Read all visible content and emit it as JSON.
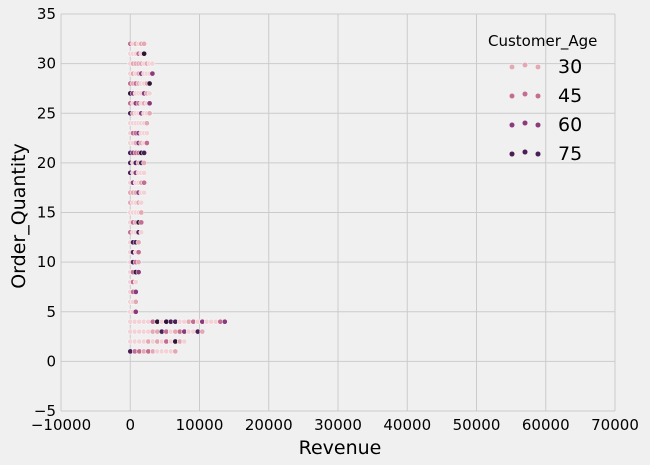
{
  "chart_data": {
    "type": "scatter",
    "title": "",
    "xlabel": "Revenue",
    "ylabel": "Order_Quantity",
    "xlim": [
      -10000,
      70000
    ],
    "ylim": [
      -5,
      35
    ],
    "xticks": [
      -10000,
      0,
      10000,
      20000,
      30000,
      40000,
      50000,
      60000,
      70000
    ],
    "yticks": [
      -5,
      0,
      5,
      10,
      15,
      20,
      25,
      30,
      35
    ],
    "grid": true,
    "legend": {
      "title": "Customer_Age",
      "placement": "top-right",
      "entries": [
        {
          "label": "30",
          "color": "#e2a8b4"
        },
        {
          "label": "45",
          "color": "#c26e91"
        },
        {
          "label": "60",
          "color": "#8a3c7a"
        },
        {
          "label": "75",
          "color": "#4a1f55"
        }
      ]
    },
    "hue_scale": {
      "name": "Customer_Age",
      "colors": [
        "#f2d2d6",
        "#e2a8b4",
        "#c26e91",
        "#8a3c7a",
        "#4a1f55",
        "#2e1538"
      ],
      "range": [
        17,
        87
      ]
    },
    "rows": [
      {
        "y": 32,
        "max_x": 2200,
        "step": 400
      },
      {
        "y": 31,
        "max_x": 2300,
        "step": 400
      },
      {
        "y": 30,
        "max_x": 3500,
        "step": 400
      },
      {
        "y": 29,
        "max_x": 3300,
        "step": 400
      },
      {
        "y": 28,
        "max_x": 3000,
        "step": 400
      },
      {
        "y": 27,
        "max_x": 3100,
        "step": 400
      },
      {
        "y": 26,
        "max_x": 3000,
        "step": 400
      },
      {
        "y": 25,
        "max_x": 2900,
        "step": 400
      },
      {
        "y": 24,
        "max_x": 2600,
        "step": 400
      },
      {
        "y": 23,
        "max_x": 2700,
        "step": 400
      },
      {
        "y": 22,
        "max_x": 2600,
        "step": 400
      },
      {
        "y": 21,
        "max_x": 2300,
        "step": 400
      },
      {
        "y": 20,
        "max_x": 2200,
        "step": 400
      },
      {
        "y": 19,
        "max_x": 2100,
        "step": 400
      },
      {
        "y": 18,
        "max_x": 2000,
        "step": 400
      },
      {
        "y": 17,
        "max_x": 2000,
        "step": 400
      },
      {
        "y": 16,
        "max_x": 1900,
        "step": 400
      },
      {
        "y": 15,
        "max_x": 1800,
        "step": 400
      },
      {
        "y": 14,
        "max_x": 1700,
        "step": 400
      },
      {
        "y": 13,
        "max_x": 1600,
        "step": 400
      },
      {
        "y": 12,
        "max_x": 1500,
        "step": 400
      },
      {
        "y": 11,
        "max_x": 1500,
        "step": 400
      },
      {
        "y": 10,
        "max_x": 1300,
        "step": 400
      },
      {
        "y": 9,
        "max_x": 1200,
        "step": 400
      },
      {
        "y": 8,
        "max_x": 1100,
        "step": 400
      },
      {
        "y": 7,
        "max_x": 1000,
        "step": 400
      },
      {
        "y": 6,
        "max_x": 1000,
        "step": 400
      },
      {
        "y": 5,
        "max_x": 900,
        "step": 400
      },
      {
        "y": 4,
        "max_x": 14200,
        "step": 650
      },
      {
        "y": 3,
        "max_x": 10800,
        "step": 650
      },
      {
        "y": 2,
        "max_x": 8300,
        "step": 650
      },
      {
        "y": 1,
        "max_x": 6700,
        "step": 650
      }
    ]
  }
}
